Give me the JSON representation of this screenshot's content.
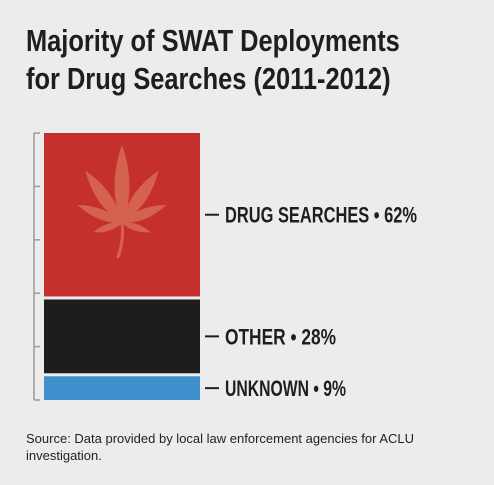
{
  "title": {
    "line1": "Majority of SWAT Deployments",
    "line2": "for Drug Searches (2011-2012)"
  },
  "chart_data": {
    "type": "bar",
    "orientation": "stacked-vertical",
    "categories": [
      "DRUG SEARCHES",
      "OTHER",
      "UNKNOWN"
    ],
    "values": [
      62,
      28,
      9
    ],
    "unit": "%",
    "labels": [
      "DRUG SEARCHES • 62%",
      "OTHER • 28%",
      "UNKNOWN • 9%"
    ],
    "colors": [
      "#c5302e",
      "#1d1d1d",
      "#3f8fcd"
    ],
    "leaf_color": "#d5614f",
    "icon": "cannabis-leaf-icon",
    "grid": false,
    "legend": "none"
  },
  "source": "Source: Data provided by local law enforcement agencies for ACLU investigation."
}
